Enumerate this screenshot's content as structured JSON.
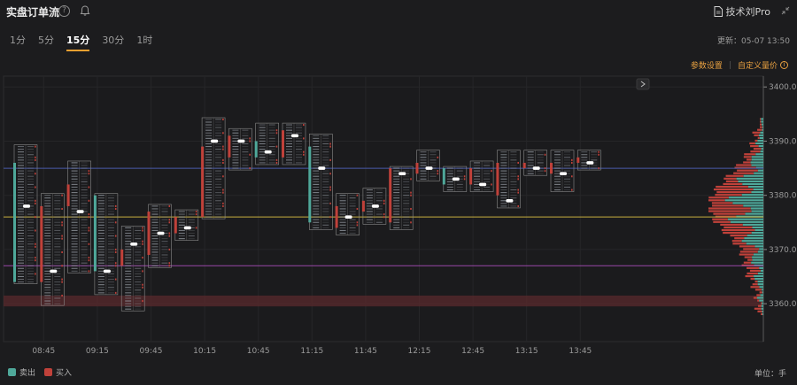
{
  "header": {
    "title": "实盘订单流",
    "help": "?",
    "pro_link": "技术刘Pro"
  },
  "tabs": [
    {
      "label": "1分",
      "active": false
    },
    {
      "label": "5分",
      "active": false
    },
    {
      "label": "15分",
      "active": true
    },
    {
      "label": "30分",
      "active": false
    },
    {
      "label": "1时",
      "active": false
    }
  ],
  "update_time": "更新：05-07 13:50",
  "settings": {
    "params": "参数设置",
    "custom_volume": "自定义量价"
  },
  "legend": {
    "sell": "卖出",
    "buy": "买入"
  },
  "unit": "单位：手",
  "colors": {
    "sell": "#4fa89a",
    "buy": "#c0413a",
    "accent": "#f0a030",
    "bg": "#1c1c1e"
  },
  "chart_data": {
    "type": "footprint",
    "y_ticks": [
      3400.0,
      3390.0,
      3380.0,
      3370.0,
      3360.0
    ],
    "y_tick_labels": [
      "3400.0",
      "3390.0",
      "3380.0",
      "3370.0",
      "3360.0"
    ],
    "x_tick_labels": [
      "08:45",
      "09:15",
      "09:45",
      "10:15",
      "10:45",
      "11:15",
      "11:45",
      "12:15",
      "12:45",
      "13:15",
      "13:45"
    ],
    "ylim": [
      3353,
      3402
    ],
    "ref_lines": [
      {
        "price": 3385.0,
        "color": "#4a5aa8"
      },
      {
        "price": 3376.0,
        "color": "#c8b040"
      },
      {
        "price": 3367.0,
        "color": "#9a48a8"
      }
    ],
    "bars": [
      {
        "low": 3364,
        "high": 3389,
        "open": 3386,
        "close": 3364,
        "poc": 3378
      },
      {
        "low": 3360,
        "high": 3380,
        "open": 3364,
        "close": 3378,
        "poc": 3366
      },
      {
        "low": 3366,
        "high": 3386,
        "open": 3378,
        "close": 3382,
        "poc": 3377
      },
      {
        "low": 3362,
        "high": 3380,
        "open": 3380,
        "close": 3366,
        "poc": 3366
      },
      {
        "low": 3359,
        "high": 3374,
        "open": 3367,
        "close": 3370,
        "poc": 3371
      },
      {
        "low": 3367,
        "high": 3378,
        "open": 3369,
        "close": 3377,
        "poc": 3373
      },
      {
        "low": 3372,
        "high": 3377,
        "open": 3373,
        "close": 3376,
        "poc": 3374
      },
      {
        "low": 3376,
        "high": 3394,
        "open": 3376,
        "close": 3389,
        "poc": 3390
      },
      {
        "low": 3385,
        "high": 3392,
        "open": 3387,
        "close": 3391,
        "poc": 3390
      },
      {
        "low": 3386,
        "high": 3393,
        "open": 3390,
        "close": 3387,
        "poc": 3388
      },
      {
        "low": 3386,
        "high": 3393,
        "open": 3387,
        "close": 3392,
        "poc": 3391
      },
      {
        "low": 3374,
        "high": 3391,
        "open": 3389,
        "close": 3375,
        "poc": 3385
      },
      {
        "low": 3373,
        "high": 3380,
        "open": 3374,
        "close": 3378,
        "poc": 3376
      },
      {
        "low": 3375,
        "high": 3381,
        "open": 3377,
        "close": 3379,
        "poc": 3378
      },
      {
        "low": 3374,
        "high": 3385,
        "open": 3375,
        "close": 3385,
        "poc": 3384
      },
      {
        "low": 3383,
        "high": 3388,
        "open": 3384,
        "close": 3386,
        "poc": 3385
      },
      {
        "low": 3381,
        "high": 3385,
        "open": 3385,
        "close": 3382,
        "poc": 3383
      },
      {
        "low": 3381,
        "high": 3386,
        "open": 3382,
        "close": 3385,
        "poc": 3382
      },
      {
        "low": 3378,
        "high": 3388,
        "open": 3380,
        "close": 3386,
        "poc": 3379
      },
      {
        "low": 3384,
        "high": 3388,
        "open": 3385,
        "close": 3386,
        "poc": 3385
      },
      {
        "low": 3381,
        "high": 3388,
        "open": 3384,
        "close": 3386,
        "poc": 3384
      },
      {
        "low": 3385,
        "high": 3388,
        "open": 3386,
        "close": 3387,
        "poc": 3386
      }
    ]
  }
}
